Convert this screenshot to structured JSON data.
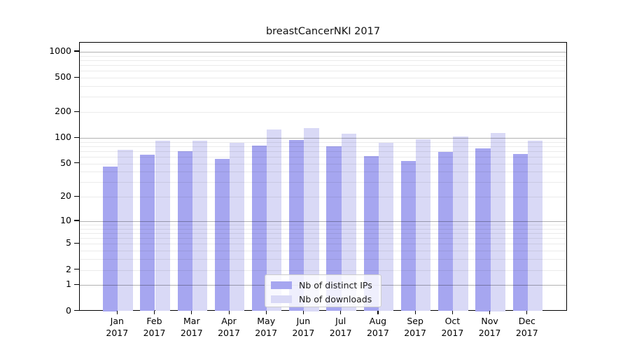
{
  "chart_data": {
    "type": "bar",
    "title": "breastCancerNKI 2017",
    "y_scale": "log1p",
    "grid": true,
    "legend_position": "lower center",
    "categories": [
      "Jan 2017",
      "Feb 2017",
      "Mar 2017",
      "Apr 2017",
      "May 2017",
      "Jun 2017",
      "Jul 2017",
      "Aug 2017",
      "Sep 2017",
      "Oct 2017",
      "Nov 2017",
      "Dec 2017"
    ],
    "series": [
      {
        "name": "Nb of distinct IPs",
        "color": "#a6a6f0",
        "values": [
          46,
          64,
          70,
          57,
          81,
          94,
          80,
          61,
          54,
          68,
          76,
          65
        ]
      },
      {
        "name": "Nb of downloads",
        "color": "#d9d9f6",
        "values": [
          72,
          92,
          92,
          87,
          126,
          130,
          111,
          87,
          96,
          104,
          114,
          93
        ]
      }
    ],
    "y_ticks": [
      1000,
      500,
      200,
      100,
      50,
      20,
      10,
      5,
      2,
      1,
      0
    ],
    "y_major_gridlines": [
      1,
      10,
      100,
      1000
    ],
    "y_minor_gridlines": [
      2,
      3,
      4,
      5,
      6,
      7,
      8,
      9,
      20,
      30,
      40,
      50,
      60,
      70,
      80,
      90,
      200,
      300,
      400,
      500,
      600,
      700,
      800,
      900
    ],
    "ylim": [
      0,
      1285
    ]
  },
  "colors": {
    "distinct_ips_bar": "#a6a6f0",
    "downloads_bar": "#d9d9f6",
    "axis": "#000000",
    "major_gridline": "#b3b3b3",
    "minor_gridline": "#ebebeb",
    "legend_border": "#cccccc",
    "text": "#1a1a1a"
  }
}
